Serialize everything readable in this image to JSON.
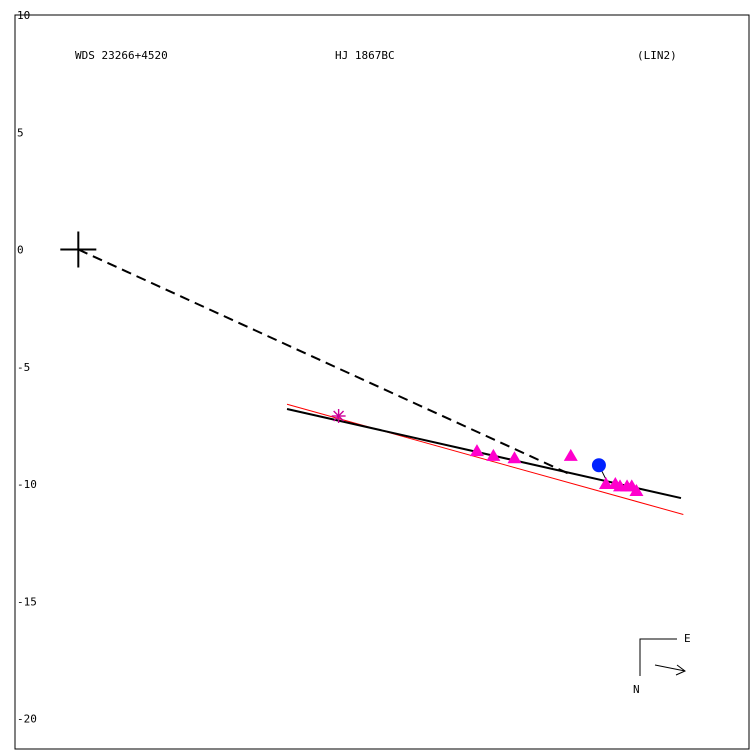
{
  "chart_data": {
    "type": "scatter",
    "title_left": "WDS 23266+4520",
    "title_center": "HJ 1867BC",
    "title_right": "(LIN2)",
    "ylim": [
      -21.3,
      10
    ],
    "xlim": [
      -2.7,
      28.6
    ],
    "yticks": [
      10,
      5,
      0,
      -5,
      -10,
      -15,
      -20
    ],
    "ytick_labels": [
      "10",
      "5",
      "0",
      "-5",
      "-10",
      "-15",
      "-20"
    ],
    "primary_star": {
      "x": 0,
      "y": 0
    },
    "asterisk": {
      "x": 11.1,
      "y": -7.1
    },
    "circle_point": {
      "x": 22.2,
      "y": -9.2
    },
    "triangles": [
      {
        "x": 17.0,
        "y": -8.6
      },
      {
        "x": 17.7,
        "y": -8.8
      },
      {
        "x": 18.6,
        "y": -8.9
      },
      {
        "x": 21.0,
        "y": -8.8
      },
      {
        "x": 22.5,
        "y": -10.0
      },
      {
        "x": 22.9,
        "y": -10.0
      },
      {
        "x": 23.1,
        "y": -10.1
      },
      {
        "x": 23.4,
        "y": -10.1
      },
      {
        "x": 23.6,
        "y": -10.1
      },
      {
        "x": 23.8,
        "y": -10.3
      }
    ],
    "red_line": [
      {
        "x": 8.9,
        "y": -6.6
      },
      {
        "x": 25.8,
        "y": -11.3
      }
    ],
    "black_line": [
      {
        "x": 8.9,
        "y": -6.8
      },
      {
        "x": 25.7,
        "y": -10.6
      }
    ],
    "dashed_line": [
      {
        "x": 0,
        "y": 0
      },
      {
        "x": 21.0,
        "y": -9.6
      }
    ],
    "circle_connector": [
      {
        "x": 22.2,
        "y": -9.2
      },
      {
        "x": 22.5,
        "y": -9.8
      }
    ],
    "orientation": {
      "east_label": "E",
      "north_label": "N"
    },
    "colors": {
      "triangle": "#ff00cc",
      "circle": "#0022ff",
      "asterisk": "#cc0099",
      "red_line": "#ff0000",
      "line": "#000000"
    }
  }
}
